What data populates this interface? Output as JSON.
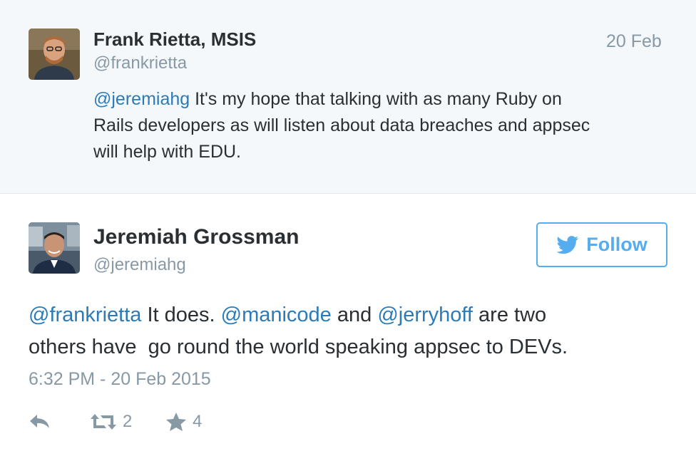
{
  "parent_tweet": {
    "name": "Frank Rietta, MSIS",
    "handle": "@frankrietta",
    "date": "20 Feb",
    "mention": "@jeremiahg",
    "text_line1": " It's my hope that talking with as many Ruby on",
    "text_line2": "Rails developers as will listen about data breaches and appsec",
    "text_line3": "will help with EDU."
  },
  "main_tweet": {
    "name": "Jeremiah Grossman",
    "handle": "@jeremiahg",
    "follow_label": "Follow",
    "mention1": "@frankrietta",
    "text1": " It does. ",
    "mention2": "@manicode",
    "text2": " and ",
    "mention3": "@jerryhoff",
    "text3": " are two",
    "text_line2": "others have  go round the world speaking appsec to DEVs.",
    "timestamp": "6:32 PM - 20 Feb 2015",
    "retweet_count": "2",
    "favorite_count": "4"
  },
  "colors": {
    "link": "#2b7bb9",
    "follow_accent": "#55acee",
    "muted": "#8899a6",
    "text": "#292f33",
    "parent_bg": "#f5f8fa"
  },
  "icons": {
    "reply": "reply-icon",
    "retweet": "retweet-icon",
    "favorite": "star-icon",
    "follow": "twitter-bird-icon"
  }
}
